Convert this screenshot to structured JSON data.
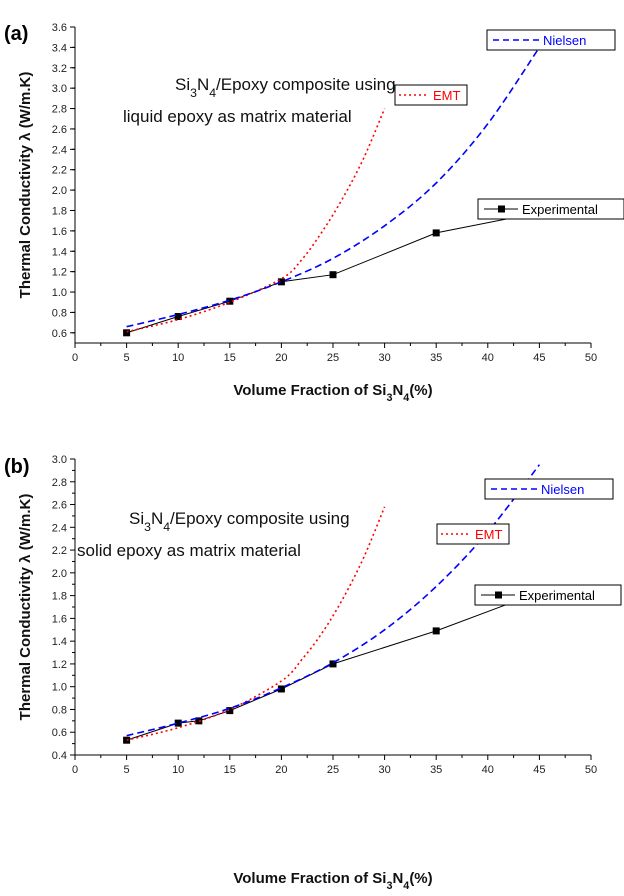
{
  "chart_data": [
    {
      "type": "line",
      "panel_label": "(a)",
      "xlabel": "Volume Fraction of Si3N4(%)",
      "ylabel": "Thermal Conductivity λ (W/m.K)",
      "xlim": [
        0,
        50
      ],
      "ylim": [
        0.5,
        3.6
      ],
      "xticks": [
        0,
        5,
        10,
        15,
        20,
        25,
        30,
        35,
        40,
        45,
        50
      ],
      "yticks": [
        0.6,
        0.8,
        1.0,
        1.2,
        1.4,
        1.6,
        1.8,
        2.0,
        2.2,
        2.4,
        2.6,
        2.8,
        3.0,
        3.2,
        3.4,
        3.6
      ],
      "annotation": [
        "Si3N4/Epoxy composite using",
        "liquid epoxy as matrix material"
      ],
      "grid": false,
      "series": [
        {
          "name": "Experimental",
          "style": "solid-square",
          "color": "#000000",
          "x": [
            5,
            10,
            15,
            20,
            25,
            35,
            45
          ],
          "y": [
            0.6,
            0.76,
            0.91,
            1.1,
            1.17,
            1.58,
            1.78
          ]
        },
        {
          "name": "EMT",
          "style": "dotted",
          "color": "#ff0000",
          "x": [
            5,
            10,
            15,
            20,
            22,
            24,
            26,
            28,
            30
          ],
          "y": [
            0.61,
            0.73,
            0.9,
            1.13,
            1.32,
            1.6,
            1.93,
            2.32,
            2.8
          ]
        },
        {
          "name": "Nielsen",
          "style": "dashed",
          "color": "#0000ff",
          "x": [
            5,
            10,
            15,
            20,
            25,
            30,
            35,
            40,
            45
          ],
          "y": [
            0.66,
            0.78,
            0.92,
            1.1,
            1.33,
            1.65,
            2.07,
            2.65,
            3.4
          ]
        }
      ]
    },
    {
      "type": "line",
      "panel_label": "(b)",
      "xlabel": "Volume Fraction of Si3N4(%)",
      "ylabel": "Thermal Conductivity λ (W/m.K)",
      "xlim": [
        0,
        50
      ],
      "ylim": [
        0.4,
        3.0
      ],
      "xticks": [
        0,
        5,
        10,
        15,
        20,
        25,
        30,
        35,
        40,
        45,
        50
      ],
      "yticks": [
        0.4,
        0.6,
        0.8,
        1.0,
        1.2,
        1.4,
        1.6,
        1.8,
        2.0,
        2.2,
        2.4,
        2.6,
        2.8,
        3.0
      ],
      "annotation": [
        "Si3N4/Epoxy composite using",
        "solid epoxy as matrix material"
      ],
      "grid": false,
      "series": [
        {
          "name": "Experimental",
          "style": "solid-square",
          "color": "#000000",
          "x": [
            5,
            10,
            12,
            15,
            20,
            25,
            35,
            45
          ],
          "y": [
            0.53,
            0.68,
            0.7,
            0.79,
            0.98,
            1.2,
            1.49,
            1.83
          ]
        },
        {
          "name": "EMT",
          "style": "dotted",
          "color": "#ff0000",
          "x": [
            5,
            10,
            15,
            20,
            22,
            24,
            26,
            28,
            30
          ],
          "y": [
            0.53,
            0.64,
            0.8,
            1.05,
            1.24,
            1.48,
            1.78,
            2.14,
            2.58
          ]
        },
        {
          "name": "Nielsen",
          "style": "dashed",
          "color": "#0000ff",
          "x": [
            5,
            10,
            15,
            20,
            25,
            30,
            35,
            40,
            45
          ],
          "y": [
            0.57,
            0.68,
            0.81,
            0.99,
            1.21,
            1.5,
            1.88,
            2.36,
            2.95
          ]
        }
      ]
    }
  ]
}
